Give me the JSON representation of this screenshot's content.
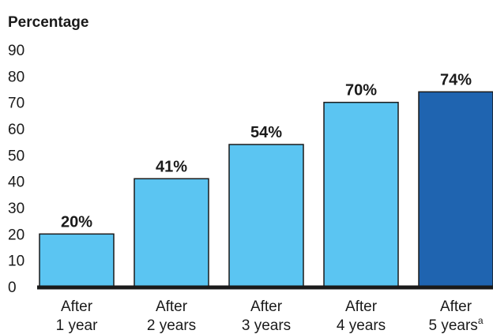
{
  "chart_data": {
    "type": "bar",
    "ylabel": "Percentage",
    "ylim": [
      0,
      90
    ],
    "yticks": [
      0,
      10,
      20,
      30,
      40,
      50,
      60,
      70,
      80,
      90
    ],
    "categories": [
      {
        "line1": "After",
        "line2": "1 year",
        "sup": ""
      },
      {
        "line1": "After",
        "line2": "2 years",
        "sup": ""
      },
      {
        "line1": "After",
        "line2": "3 years",
        "sup": ""
      },
      {
        "line1": "After",
        "line2": "4 years",
        "sup": ""
      },
      {
        "line1": "After",
        "line2": "5 years",
        "sup": "a"
      }
    ],
    "values": [
      20,
      41,
      54,
      70,
      74
    ],
    "data_labels": [
      "20%",
      "41%",
      "54%",
      "70%",
      "74%"
    ],
    "bar_colors": [
      "#5bc5f2",
      "#5bc5f2",
      "#5bc5f2",
      "#5bc5f2",
      "#1f64b0"
    ],
    "grid": false,
    "legend": "none"
  }
}
